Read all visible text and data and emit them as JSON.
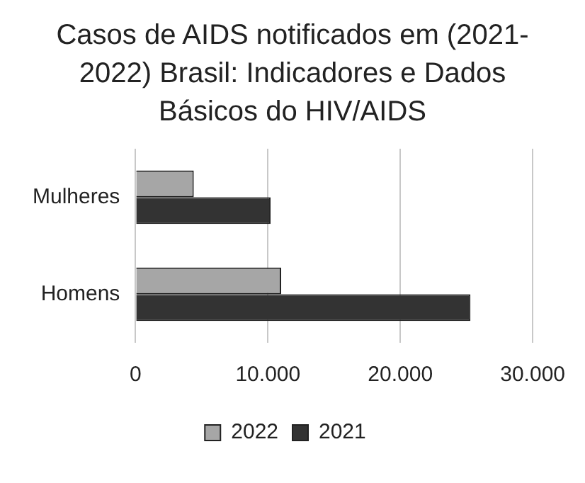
{
  "chart_data": {
    "type": "bar",
    "orientation": "horizontal",
    "title": "Casos de AIDS notificados em (2021-2022) Brasil: Indicadores e Dados Básicos do HIV/AIDS",
    "categories": [
      "Mulheres",
      "Homens"
    ],
    "series": [
      {
        "name": "2022",
        "color": "#a6a6a6",
        "values": [
          4400,
          11000
        ]
      },
      {
        "name": "2021",
        "color": "#333333",
        "values": [
          10200,
          25300
        ]
      }
    ],
    "xlim": [
      0,
      30000
    ],
    "xticks": [
      0,
      {
        "value": 10000,
        "label": "10.000"
      },
      {
        "value": 20000,
        "label": "20.000"
      },
      {
        "value": 30000,
        "label": "30.000"
      }
    ],
    "grid": "x",
    "legend": "bottom"
  }
}
